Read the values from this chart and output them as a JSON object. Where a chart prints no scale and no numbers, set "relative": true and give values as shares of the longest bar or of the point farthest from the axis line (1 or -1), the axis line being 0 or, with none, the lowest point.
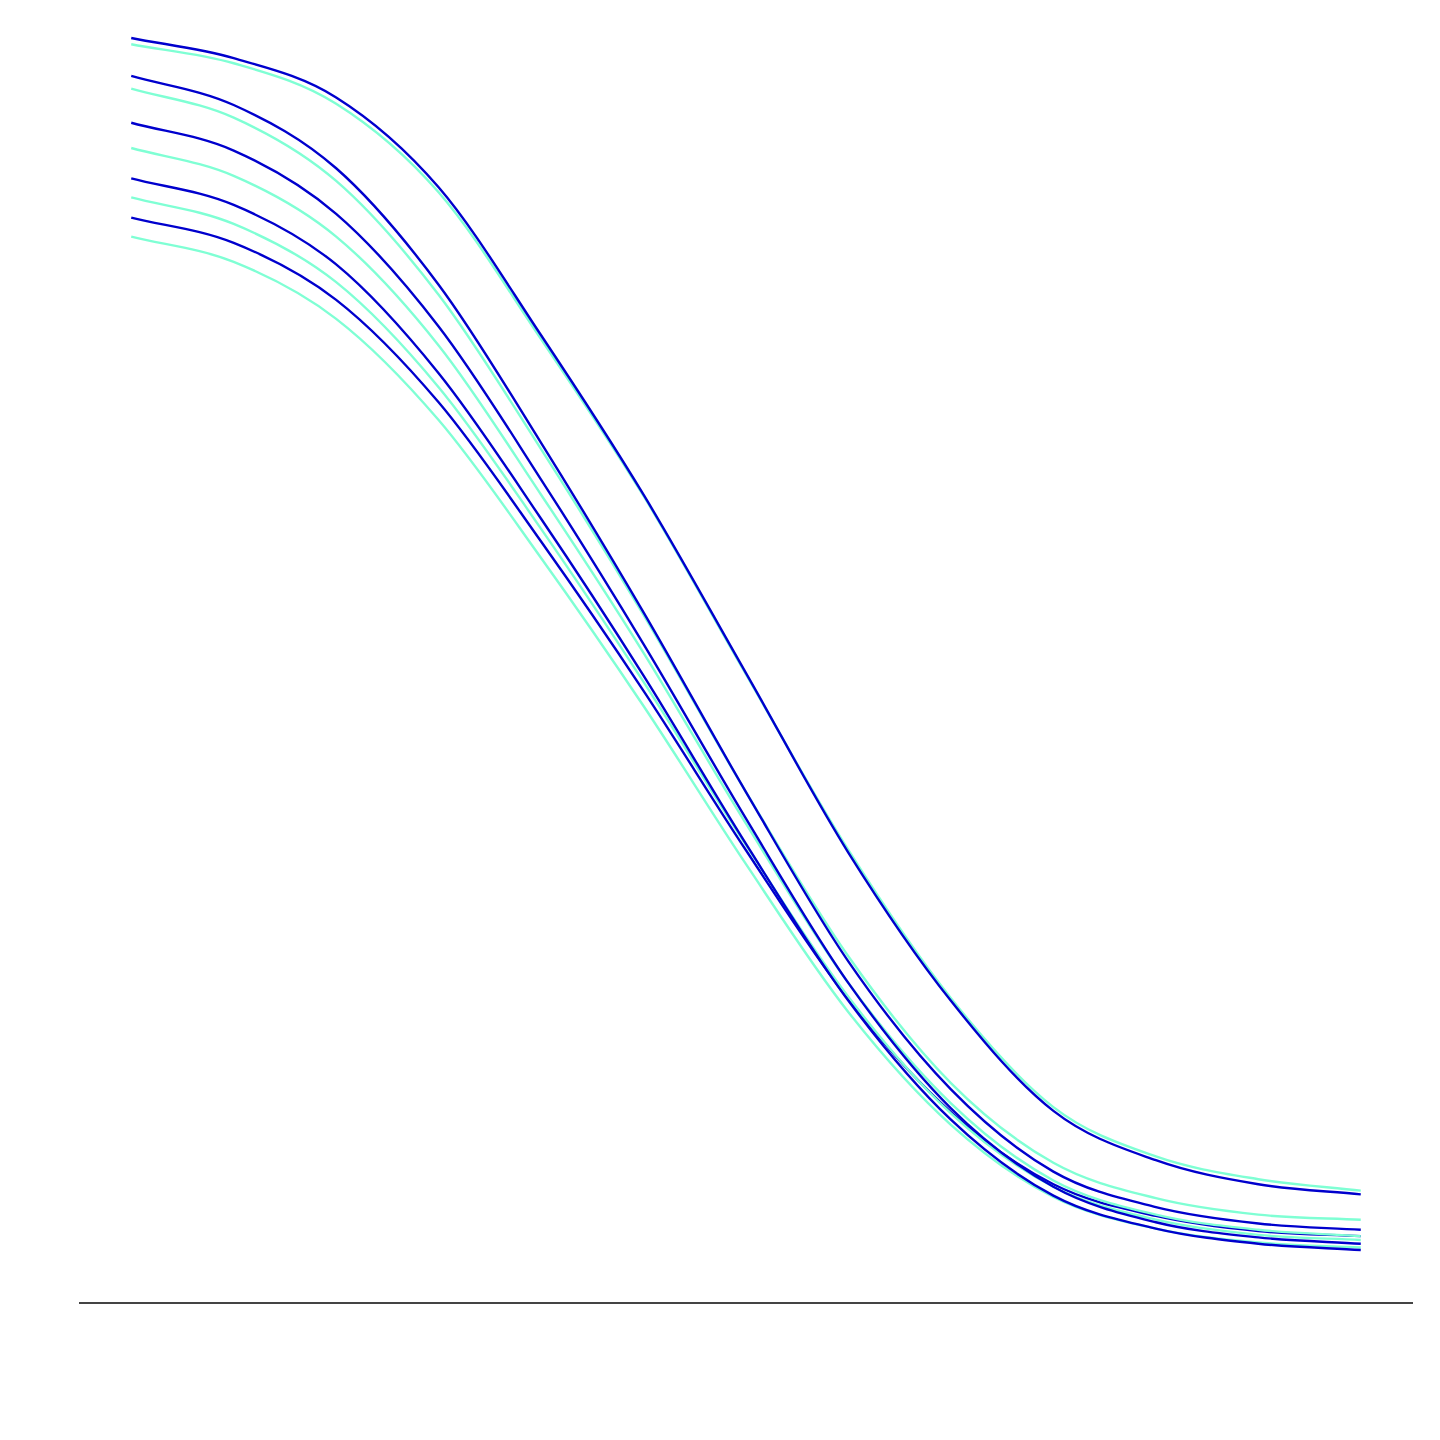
{
  "chart_data": {
    "type": "line",
    "relative": true,
    "grid": false,
    "legend": false,
    "marker": "none",
    "line_style": "solid",
    "categories": [
      null,
      null,
      null,
      null,
      null,
      null,
      null,
      null,
      null,
      null,
      null,
      null,
      null
    ],
    "series": [
      {
        "color": "#0000cd",
        "values": [
          1,
          0.984,
          0.953,
          0.882,
          0.765,
          0.639,
          0.498,
          0.356,
          0.239,
          0.152,
          0.113,
          0.094,
          0.086
        ]
      },
      {
        "color": "#7fffd4",
        "values": [
          0.995,
          0.98,
          0.948,
          0.878,
          0.762,
          0.638,
          0.497,
          0.358,
          0.241,
          0.155,
          0.116,
          0.098,
          0.089
        ]
      },
      {
        "color": "#0000cd",
        "values": [
          0.97,
          0.947,
          0.897,
          0.805,
          0.68,
          0.546,
          0.404,
          0.27,
          0.169,
          0.104,
          0.076,
          0.063,
          0.058
        ]
      },
      {
        "color": "#7fffd4",
        "values": [
          0.96,
          0.937,
          0.887,
          0.797,
          0.675,
          0.544,
          0.404,
          0.274,
          0.174,
          0.111,
          0.083,
          0.07,
          0.066
        ]
      },
      {
        "color": "#0000cd",
        "values": [
          0.933,
          0.911,
          0.861,
          0.772,
          0.651,
          0.521,
          0.383,
          0.253,
          0.154,
          0.092,
          0.064,
          0.052,
          0.047
        ]
      },
      {
        "color": "#7fffd4",
        "values": [
          0.913,
          0.891,
          0.843,
          0.757,
          0.639,
          0.514,
          0.379,
          0.253,
          0.158,
          0.097,
          0.07,
          0.058,
          0.053
        ]
      },
      {
        "color": "#0000cd",
        "values": [
          0.889,
          0.868,
          0.821,
          0.735,
          0.62,
          0.496,
          0.363,
          0.239,
          0.145,
          0.085,
          0.059,
          0.047,
          0.042
        ]
      },
      {
        "color": "#7fffd4",
        "values": [
          0.874,
          0.853,
          0.807,
          0.724,
          0.612,
          0.491,
          0.362,
          0.242,
          0.15,
          0.092,
          0.066,
          0.054,
          0.05
        ]
      },
      {
        "color": "#0000cd",
        "values": [
          0.858,
          0.838,
          0.793,
          0.712,
          0.602,
          0.484,
          0.358,
          0.24,
          0.151,
          0.094,
          0.069,
          0.057,
          0.053
        ]
      },
      {
        "color": "#7fffd4",
        "values": [
          0.843,
          0.823,
          0.778,
          0.698,
          0.589,
          0.472,
          0.347,
          0.23,
          0.141,
          0.084,
          0.059,
          0.048,
          0.044
        ]
      }
    ]
  }
}
